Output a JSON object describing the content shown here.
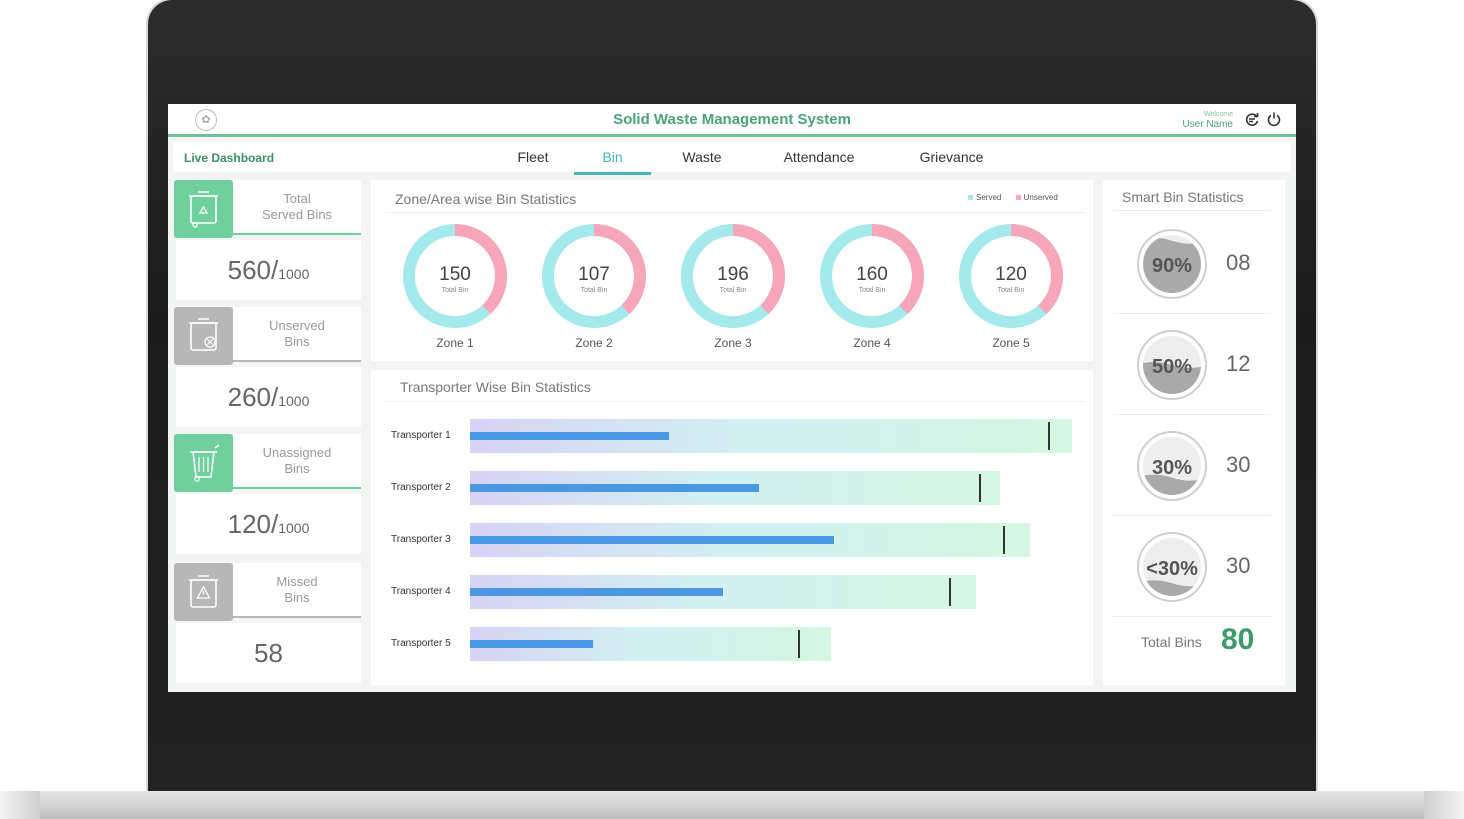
{
  "header": {
    "title": "Solid Waste Management System",
    "welcome": "Welcome",
    "user_name": "User Name",
    "logo_glyph": "✿"
  },
  "nav": {
    "breadcrumb": "Live Dashboard",
    "tabs": [
      {
        "label": "Fleet"
      },
      {
        "label": "Bin",
        "active": true
      },
      {
        "label": "Waste"
      },
      {
        "label": "Attendance"
      },
      {
        "label": "Grievance"
      }
    ]
  },
  "stats": [
    {
      "label_line1": "Total",
      "label_line2": "Served Bins",
      "value": "560/",
      "total": "1000",
      "color": "#6fcf9d"
    },
    {
      "label_line1": "Unserved",
      "label_line2": "Bins",
      "value": "260/",
      "total": "1000",
      "color": "#b7b7b7"
    },
    {
      "label_line1": "Unassigned",
      "label_line2": "Bins",
      "value": "120/",
      "total": "1000",
      "color": "#6fcf9d"
    },
    {
      "label_line1": "Missed",
      "label_line2": "Bins",
      "value": "58",
      "total": "",
      "color": "#b7b7b7"
    }
  ],
  "zone_section": {
    "title": "Zone/Area wise Bin Statistics",
    "legend": [
      "Served",
      "Unserved"
    ],
    "colors": {
      "served": "#a4e9ec",
      "unserved": "#f7a5b8"
    },
    "subtitle": "Total Bin",
    "zones": [
      {
        "name": "Zone 1",
        "total": "150",
        "served_fraction": 0.62
      },
      {
        "name": "Zone 2",
        "total": "107",
        "served_fraction": 0.62
      },
      {
        "name": "Zone 3",
        "total": "196",
        "served_fraction": 0.62
      },
      {
        "name": "Zone 4",
        "total": "160",
        "served_fraction": 0.62
      },
      {
        "name": "Zone 5",
        "total": "120",
        "served_fraction": 0.62
      }
    ]
  },
  "transporter_section": {
    "title": "Transporter Wise  Bin Statistics",
    "transporters": [
      {
        "name": "Transporter 1",
        "capacity": 100,
        "served": 33,
        "target": 96
      },
      {
        "name": "Transporter 2",
        "capacity": 88,
        "served": 48,
        "target": 84.5
      },
      {
        "name": "Transporter 3",
        "capacity": 93,
        "served": 60.5,
        "target": 88.5
      },
      {
        "name": "Transporter 4",
        "capacity": 84,
        "served": 42,
        "target": 79.5
      },
      {
        "name": "Transporter 5",
        "capacity": 60,
        "served": 20.5,
        "target": 54.5
      }
    ]
  },
  "smart_bins": {
    "title": "Smart Bin Statistics",
    "rows": [
      {
        "label": "90%",
        "count": "08",
        "fill": 0.9
      },
      {
        "label": "50%",
        "count": "12",
        "fill": 0.5
      },
      {
        "label": "30%",
        "count": "30",
        "fill": 0.3
      },
      {
        "label": "<30%",
        "count": "30",
        "fill": 0.22
      }
    ],
    "total_label": "Total Bins",
    "total_value": "80"
  }
}
